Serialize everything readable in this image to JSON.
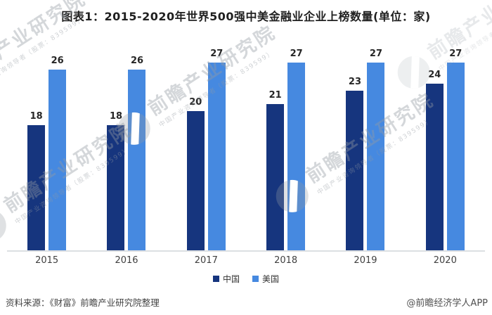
{
  "title": "图表1：2015-2020年世界500强中美金融业企业上榜数量(单位：家)",
  "chart_data": {
    "type": "bar",
    "categories": [
      "2015",
      "2016",
      "2017",
      "2018",
      "2019",
      "2020"
    ],
    "series": [
      {
        "name": "中国",
        "color": "#16357E",
        "values": [
          18,
          18,
          20,
          21,
          23,
          24
        ]
      },
      {
        "name": "美国",
        "color": "#4689E0",
        "values": [
          26,
          26,
          27,
          27,
          27,
          27
        ]
      }
    ],
    "title": "图表1：2015-2020年世界500强中美金融业企业上榜数量(单位：家)",
    "xlabel": "",
    "ylabel": "",
    "ylim": [
      0,
      27
    ],
    "grid": false,
    "value_labels": true,
    "legend_position": "bottom"
  },
  "legend": {
    "items": [
      {
        "label": "中国",
        "color": "#16357E"
      },
      {
        "label": "美国",
        "color": "#4689E0"
      }
    ]
  },
  "footer": {
    "source": "资料来源：《财富》前瞻产业研究院整理",
    "credit": "@前瞻经济学人APP"
  },
  "watermark": {
    "text": "前瞻产业研究院",
    "subtext": "中国产业咨询领导者（股票：839599）"
  },
  "colors": {
    "axis_line": "#dcdfe2",
    "label_text": "#262626",
    "tick_text": "#404040"
  }
}
